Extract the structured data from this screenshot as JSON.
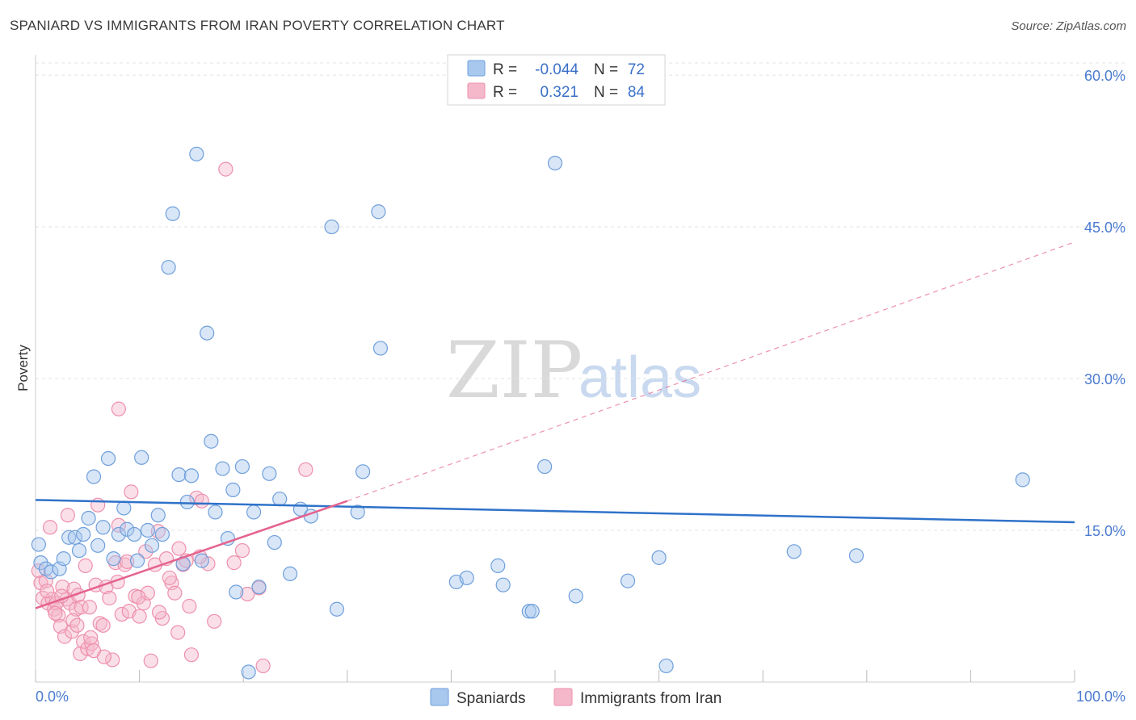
{
  "header": {
    "title": "SPANIARD VS IMMIGRANTS FROM IRAN POVERTY CORRELATION CHART",
    "source_prefix": "Source: ",
    "source_name": "ZipAtlas.com"
  },
  "watermark": {
    "zip": "ZIP",
    "atlas": "atlas"
  },
  "legend": {
    "r_label": "R =",
    "n_label": "N =",
    "rows": [
      {
        "r": "-0.044",
        "n": "72",
        "color": "#a8c8ee"
      },
      {
        "r": "0.321",
        "n": "84",
        "color": "#f5b8cb"
      }
    ]
  },
  "bottom_legend": [
    {
      "label": "Spaniards",
      "color": "#a8c8ee"
    },
    {
      "label": "Immigrants from Iran",
      "color": "#f5b8cb"
    }
  ],
  "colors": {
    "blue_fill": "#a8c8ee",
    "blue_stroke": "#6f9fdc",
    "blue_line": "#2f72c9",
    "pink_fill": "#f5b8cb",
    "pink_stroke": "#ee90ac",
    "pink_line": "#e5628e",
    "grid": "#e3e3e3",
    "axis": "#cccccc"
  },
  "chart_data": {
    "type": "scatter",
    "title": "SPANIARD VS IMMIGRANTS FROM IRAN POVERTY CORRELATION CHART",
    "xlabel": "",
    "ylabel": "Poverty",
    "xlim": [
      0,
      100
    ],
    "ylim": [
      0,
      62
    ],
    "x_tick_labels": [
      "0.0%",
      "100.0%"
    ],
    "y_ticks": [
      15,
      30,
      45,
      60
    ],
    "y_tick_labels": [
      "15.0%",
      "30.0%",
      "45.0%",
      "60.0%"
    ],
    "grid": true,
    "legend_position": "top-center",
    "series": [
      {
        "name": "Spaniards",
        "R": -0.044,
        "N": 72,
        "trend": {
          "x": [
            0,
            100
          ],
          "y": [
            18.0,
            15.8
          ],
          "style": "solid"
        },
        "points": [
          [
            0.3,
            13.6
          ],
          [
            0.5,
            11.8
          ],
          [
            1.0,
            11.2
          ],
          [
            1.5,
            10.9
          ],
          [
            2.3,
            11.2
          ],
          [
            2.7,
            12.2
          ],
          [
            3.2,
            14.3
          ],
          [
            3.8,
            14.3
          ],
          [
            4.2,
            13.0
          ],
          [
            4.6,
            14.6
          ],
          [
            5.1,
            16.2
          ],
          [
            5.6,
            20.3
          ],
          [
            6.0,
            13.5
          ],
          [
            6.5,
            15.3
          ],
          [
            7.0,
            22.1
          ],
          [
            7.5,
            12.2
          ],
          [
            8.0,
            14.6
          ],
          [
            8.5,
            17.2
          ],
          [
            8.8,
            15.1
          ],
          [
            9.5,
            14.6
          ],
          [
            9.8,
            12.0
          ],
          [
            10.2,
            22.2
          ],
          [
            10.8,
            15.0
          ],
          [
            11.2,
            13.5
          ],
          [
            11.8,
            16.5
          ],
          [
            12.2,
            14.6
          ],
          [
            12.8,
            41.0
          ],
          [
            13.2,
            46.3
          ],
          [
            13.8,
            20.5
          ],
          [
            14.2,
            11.7
          ],
          [
            14.6,
            17.8
          ],
          [
            15.0,
            20.4
          ],
          [
            15.5,
            52.2
          ],
          [
            16.0,
            12.0
          ],
          [
            16.5,
            34.5
          ],
          [
            16.9,
            23.8
          ],
          [
            17.3,
            16.8
          ],
          [
            18.0,
            21.1
          ],
          [
            18.5,
            14.2
          ],
          [
            19.0,
            19.0
          ],
          [
            19.3,
            8.9
          ],
          [
            19.9,
            21.3
          ],
          [
            20.5,
            1.0
          ],
          [
            21.0,
            16.8
          ],
          [
            21.5,
            9.4
          ],
          [
            22.5,
            20.6
          ],
          [
            23.0,
            13.8
          ],
          [
            23.5,
            18.1
          ],
          [
            24.5,
            10.7
          ],
          [
            25.5,
            17.1
          ],
          [
            26.5,
            16.4
          ],
          [
            28.5,
            45.0
          ],
          [
            29.0,
            7.2
          ],
          [
            31.0,
            16.8
          ],
          [
            31.5,
            20.8
          ],
          [
            33.0,
            46.5
          ],
          [
            33.2,
            33.0
          ],
          [
            40.5,
            9.9
          ],
          [
            41.5,
            10.3
          ],
          [
            44.5,
            11.5
          ],
          [
            45.0,
            9.6
          ],
          [
            47.5,
            7.0
          ],
          [
            47.8,
            7.0
          ],
          [
            49.0,
            21.3
          ],
          [
            50.0,
            51.3
          ],
          [
            52.0,
            8.5
          ],
          [
            57.0,
            10.0
          ],
          [
            60.0,
            12.3
          ],
          [
            60.7,
            1.6
          ],
          [
            73.0,
            12.9
          ],
          [
            79.0,
            12.5
          ],
          [
            95.0,
            20.0
          ]
        ]
      },
      {
        "name": "Immigrants from Iran",
        "R": 0.321,
        "N": 84,
        "trend_solid": {
          "x": [
            0,
            30
          ],
          "y": [
            7.3,
            17.9
          ]
        },
        "trend_dashed": {
          "x": [
            30,
            100
          ],
          "y": [
            17.9,
            43.5
          ]
        },
        "points": [
          [
            0.3,
            11.0
          ],
          [
            0.5,
            9.8
          ],
          [
            0.7,
            8.3
          ],
          [
            1.0,
            10.0
          ],
          [
            1.2,
            7.8
          ],
          [
            1.4,
            15.3
          ],
          [
            1.6,
            8.2
          ],
          [
            1.8,
            7.2
          ],
          [
            2.0,
            7.8
          ],
          [
            2.2,
            6.6
          ],
          [
            2.4,
            5.5
          ],
          [
            2.6,
            9.4
          ],
          [
            2.8,
            4.5
          ],
          [
            3.0,
            8.2
          ],
          [
            3.1,
            16.5
          ],
          [
            3.3,
            7.8
          ],
          [
            3.5,
            5.0
          ],
          [
            3.7,
            9.2
          ],
          [
            3.9,
            7.2
          ],
          [
            4.1,
            8.6
          ],
          [
            4.3,
            2.8
          ],
          [
            4.4,
            7.4
          ],
          [
            4.6,
            4.0
          ],
          [
            4.8,
            11.5
          ],
          [
            5.0,
            3.3
          ],
          [
            5.2,
            7.4
          ],
          [
            5.4,
            3.8
          ],
          [
            5.6,
            3.1
          ],
          [
            5.8,
            9.6
          ],
          [
            6.0,
            17.5
          ],
          [
            6.2,
            5.8
          ],
          [
            6.5,
            5.6
          ],
          [
            6.8,
            9.4
          ],
          [
            7.1,
            8.3
          ],
          [
            7.4,
            2.2
          ],
          [
            7.7,
            11.8
          ],
          [
            8.0,
            15.5
          ],
          [
            8.0,
            27.0
          ],
          [
            8.3,
            6.7
          ],
          [
            8.6,
            11.6
          ],
          [
            9.0,
            7.0
          ],
          [
            9.2,
            18.8
          ],
          [
            9.6,
            8.5
          ],
          [
            10.0,
            6.5
          ],
          [
            10.4,
            7.8
          ],
          [
            10.8,
            8.8
          ],
          [
            11.1,
            2.1
          ],
          [
            11.5,
            11.6
          ],
          [
            11.8,
            14.9
          ],
          [
            12.2,
            6.3
          ],
          [
            12.6,
            12.2
          ],
          [
            13.1,
            9.8
          ],
          [
            13.4,
            8.8
          ],
          [
            13.8,
            13.2
          ],
          [
            14.2,
            11.6
          ],
          [
            14.5,
            12.0
          ],
          [
            15.0,
            2.7
          ],
          [
            15.5,
            18.2
          ],
          [
            16.0,
            17.9
          ],
          [
            16.6,
            11.7
          ],
          [
            18.3,
            50.7
          ],
          [
            19.1,
            11.8
          ],
          [
            19.9,
            13.0
          ],
          [
            21.5,
            9.3
          ],
          [
            21.9,
            1.6
          ],
          [
            26.0,
            21.0
          ],
          [
            1.1,
            9.0
          ],
          [
            1.9,
            6.8
          ],
          [
            2.5,
            8.5
          ],
          [
            3.6,
            6.1
          ],
          [
            4.0,
            5.6
          ],
          [
            5.3,
            4.4
          ],
          [
            6.6,
            2.5
          ],
          [
            7.9,
            9.9
          ],
          [
            8.8,
            11.9
          ],
          [
            9.9,
            8.4
          ],
          [
            10.6,
            12.9
          ],
          [
            11.9,
            6.9
          ],
          [
            12.9,
            10.3
          ],
          [
            13.7,
            4.9
          ],
          [
            14.8,
            7.5
          ],
          [
            15.8,
            12.4
          ],
          [
            17.2,
            6.0
          ],
          [
            20.4,
            8.7
          ]
        ]
      }
    ]
  }
}
